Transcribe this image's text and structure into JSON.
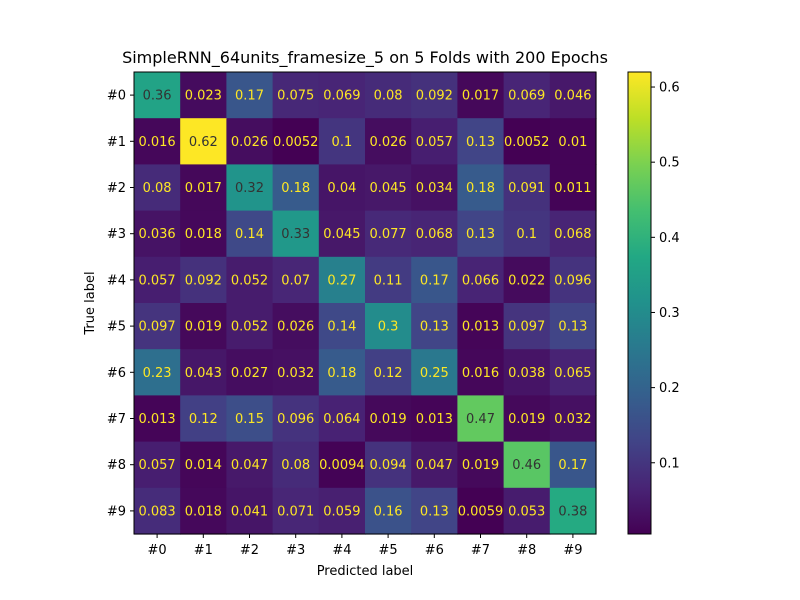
{
  "chart_data": {
    "type": "heatmap",
    "title": "SimpleRNN_64units_framesize_5 on 5 Folds with 200 Epochs",
    "xlabel": "Predicted label",
    "ylabel": "True label",
    "x_categories": [
      "#0",
      "#1",
      "#2",
      "#3",
      "#4",
      "#5",
      "#6",
      "#7",
      "#8",
      "#9"
    ],
    "y_categories": [
      "#0",
      "#1",
      "#2",
      "#3",
      "#4",
      "#5",
      "#6",
      "#7",
      "#8",
      "#9"
    ],
    "values": [
      [
        0.36,
        0.023,
        0.17,
        0.075,
        0.069,
        0.08,
        0.092,
        0.017,
        0.069,
        0.046
      ],
      [
        0.016,
        0.62,
        0.026,
        0.0052,
        0.1,
        0.026,
        0.057,
        0.13,
        0.0052,
        0.01
      ],
      [
        0.08,
        0.017,
        0.32,
        0.18,
        0.04,
        0.045,
        0.034,
        0.18,
        0.091,
        0.011
      ],
      [
        0.036,
        0.018,
        0.14,
        0.33,
        0.045,
        0.077,
        0.068,
        0.13,
        0.1,
        0.068
      ],
      [
        0.057,
        0.092,
        0.052,
        0.07,
        0.27,
        0.11,
        0.17,
        0.066,
        0.022,
        0.096
      ],
      [
        0.097,
        0.019,
        0.052,
        0.026,
        0.14,
        0.3,
        0.13,
        0.013,
        0.097,
        0.13
      ],
      [
        0.23,
        0.043,
        0.027,
        0.032,
        0.18,
        0.12,
        0.25,
        0.016,
        0.038,
        0.065
      ],
      [
        0.013,
        0.12,
        0.15,
        0.096,
        0.064,
        0.019,
        0.013,
        0.47,
        0.019,
        0.032
      ],
      [
        0.057,
        0.014,
        0.047,
        0.08,
        0.0094,
        0.094,
        0.047,
        0.019,
        0.46,
        0.17
      ],
      [
        0.083,
        0.018,
        0.041,
        0.071,
        0.059,
        0.16,
        0.13,
        0.0059,
        0.053,
        0.38
      ]
    ],
    "colormap": "viridis",
    "color_range": [
      0.0052,
      0.62
    ],
    "colorbar_ticks": [
      "0.1",
      "0.2",
      "0.3",
      "0.4",
      "0.5",
      "0.6"
    ],
    "grid": false,
    "colors": {
      "text_dark": "#333333",
      "text_light": "#fde725"
    }
  }
}
